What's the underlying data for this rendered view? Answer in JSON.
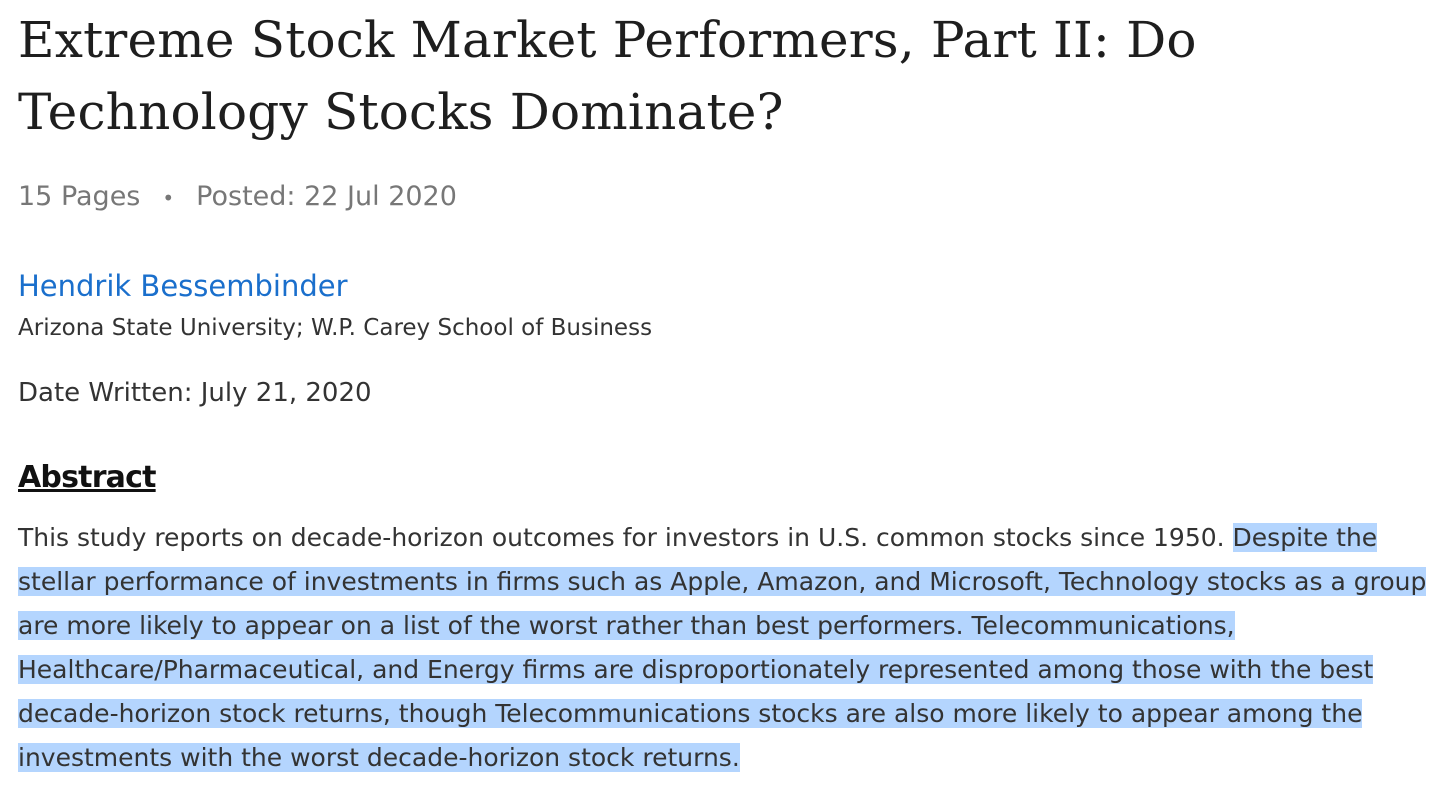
{
  "paper": {
    "title": "Extreme Stock Market Performers, Part II: Do Technology Stocks Dominate?",
    "pages": "15 Pages",
    "posted": "Posted: 22 Jul 2020",
    "separator": "•",
    "author": "Hendrik Bessembinder",
    "affiliation": "Arizona State University; W.P. Carey School of Business",
    "date_written": "Date Written: July 21, 2020"
  },
  "abstract": {
    "heading": "Abstract",
    "text_plain": "This study reports on decade-horizon outcomes for investors in U.S. common stocks since 1950. ",
    "text_selected": "Despite the stellar performance of investments in firms such as Apple, Amazon, and Microsoft, Technology stocks as a group are more likely to appear on a list of the worst rather than best performers. Telecommunications, Healthcare/Pharmaceutical, and Energy firms are disproportionately represented among those with the best decade-horizon stock returns, though Telecommunications stocks are also more likely to appear among the investments with the worst decade-horizon stock returns."
  },
  "colors": {
    "link": "#1a6fcc",
    "selection_highlight": "#b4d5fe",
    "meta_text": "#777777"
  }
}
